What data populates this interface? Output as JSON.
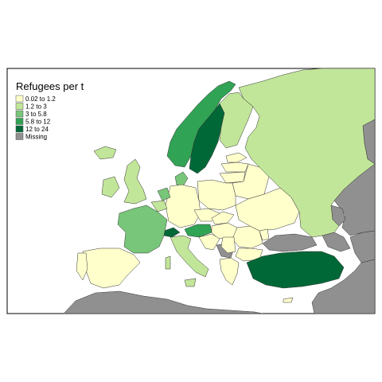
{
  "map": {
    "legend_title": "Refugees per t",
    "classes": [
      {
        "label": "0.02 to 1.2",
        "color": "#ffffcc"
      },
      {
        "label": "1.2 to 3",
        "color": "#c2e699"
      },
      {
        "label": "3 to 5.8",
        "color": "#78c679"
      },
      {
        "label": "5.8 to 12",
        "color": "#31a354"
      },
      {
        "label": "12 to 24",
        "color": "#006837"
      },
      {
        "label": "Missing",
        "color": "#909090"
      }
    ],
    "background_color": "#ffffff",
    "frame_color": "#000000"
  }
}
